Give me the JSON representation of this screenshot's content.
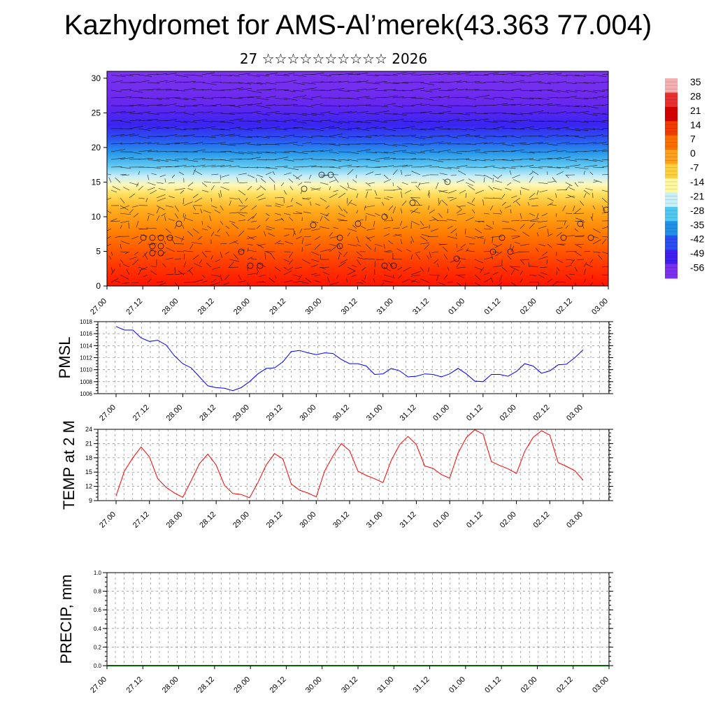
{
  "title": "Kazhydromet for AMS-Al’merek(43.363 77.004)",
  "subtitle": "27 ☆☆☆☆☆☆☆☆☆☆ 2026",
  "time_labels": [
    "27.00",
    "27.12",
    "28.00",
    "28.12",
    "29.00",
    "29.12",
    "30.00",
    "30.12",
    "31.00",
    "31.12",
    "01.00",
    "01.12",
    "02.00",
    "02.12",
    "03.00"
  ],
  "colorbar": {
    "labels": [
      "35",
      "28",
      "21",
      "14",
      "7",
      "0",
      "-7",
      "-14",
      "-21",
      "-28",
      "-35",
      "-42",
      "-49",
      "-56"
    ],
    "colors": [
      "#f4b0b0",
      "#e83030",
      "#d40000",
      "#f03c00",
      "#fb6e00",
      "#ffa01e",
      "#ffd040",
      "#fff8a0",
      "#c8f0f8",
      "#50c8f0",
      "#2090e8",
      "#2a4ef0",
      "#4020f0",
      "#7a30ee"
    ]
  },
  "chart_data": [
    {
      "type": "heatmap",
      "name": "temperature-wind-cross-section",
      "xlabel": "",
      "ylabel": "",
      "y_ticks": [
        0,
        5,
        10,
        15,
        20,
        25,
        30
      ],
      "ylim": [
        0,
        31
      ],
      "x_tick_labels": [
        "27.00",
        "27.12",
        "28.00",
        "28.12",
        "29.00",
        "29.12",
        "30.00",
        "30.12",
        "31.00",
        "31.12",
        "01.00",
        "01.12",
        "02.00",
        "02.12",
        "03.00"
      ],
      "value_range": [
        -56,
        35
      ]
    },
    {
      "type": "line",
      "name": "pmsl",
      "ylabel": "PMSL",
      "ylim": [
        1006,
        1018
      ],
      "y_ticks": [
        "1006",
        "1008",
        "1010",
        "1012",
        "1014",
        "1016",
        "1018"
      ],
      "x_tick_labels": [
        "27.00",
        "27.12",
        "28.00",
        "28.12",
        "29.00",
        "29.12",
        "30.00",
        "30.12",
        "31.00",
        "31.12",
        "01.00",
        "01.12",
        "02.00",
        "02.12",
        "03.00"
      ],
      "color": "#0000ff",
      "values": [
        1017.2,
        1016.6,
        1016.6,
        1015.3,
        1014.7,
        1014.9,
        1014.1,
        1012.3,
        1011.0,
        1010.3,
        1008.8,
        1007.3,
        1007.0,
        1006.9,
        1006.5,
        1007.0,
        1008.0,
        1009.3,
        1010.2,
        1010.3,
        1011.3,
        1013.0,
        1013.2,
        1012.8,
        1012.5,
        1012.8,
        1012.7,
        1011.7,
        1011.0,
        1011.0,
        1010.6,
        1009.2,
        1009.3,
        1010.2,
        1009.8,
        1008.8,
        1008.9,
        1009.3,
        1009.2,
        1008.8,
        1009.3,
        1010.2,
        1009.3,
        1008.1,
        1008.0,
        1009.2,
        1009.2,
        1008.9,
        1009.7,
        1011.0,
        1010.6,
        1009.4,
        1009.8,
        1010.8,
        1010.9,
        1012.0,
        1013.3
      ]
    },
    {
      "type": "line",
      "name": "temp-2m",
      "ylabel": "TEMP at 2 M",
      "ylim": [
        9,
        24
      ],
      "y_ticks": [
        "9",
        "12",
        "15",
        "18",
        "21",
        "24"
      ],
      "x_tick_labels": [
        "27.00",
        "27.12",
        "28.00",
        "28.12",
        "29.00",
        "29.12",
        "30.00",
        "30.12",
        "31.00",
        "31.12",
        "01.00",
        "01.12",
        "02.00",
        "02.12",
        "03.00"
      ],
      "color": "#ff0000",
      "values": [
        10.0,
        15.2,
        18.0,
        20.3,
        18.2,
        13.6,
        11.8,
        10.6,
        9.7,
        13.2,
        16.8,
        18.8,
        16.5,
        12.2,
        10.5,
        10.3,
        9.6,
        12.8,
        16.5,
        18.9,
        17.8,
        12.5,
        11.2,
        10.6,
        9.8,
        15.2,
        18.4,
        21.0,
        19.5,
        15.2,
        14.3,
        13.6,
        12.8,
        17.5,
        20.8,
        22.5,
        20.8,
        16.3,
        15.8,
        14.5,
        13.7,
        19.0,
        22.3,
        23.9,
        23.0,
        17.2,
        16.4,
        15.7,
        14.7,
        19.4,
        22.3,
        23.7,
        22.8,
        17.0,
        16.2,
        15.3,
        13.3
      ]
    },
    {
      "type": "line",
      "name": "precipitation",
      "ylabel": "PRECIP, mm",
      "ylim": [
        0,
        1
      ],
      "y_ticks": [
        "0.0",
        "0.2",
        "0.4",
        "0.6",
        "0.8",
        "1.0"
      ],
      "x_tick_labels": [
        "27.00",
        "27.12",
        "28.00",
        "28.12",
        "29.00",
        "29.12",
        "30.00",
        "30.12",
        "31.00",
        "31.12",
        "01.00",
        "01.12",
        "02.00",
        "02.12",
        "03.00"
      ],
      "color": "#006400",
      "values": [
        0,
        0,
        0,
        0,
        0,
        0,
        0,
        0,
        0,
        0,
        0,
        0,
        0,
        0,
        0,
        0,
        0,
        0,
        0,
        0,
        0,
        0,
        0,
        0,
        0,
        0,
        0,
        0,
        0,
        0,
        0,
        0,
        0,
        0,
        0,
        0,
        0,
        0,
        0,
        0,
        0,
        0,
        0,
        0,
        0,
        0,
        0,
        0,
        0,
        0,
        0,
        0,
        0,
        0,
        0,
        0,
        0
      ]
    }
  ]
}
